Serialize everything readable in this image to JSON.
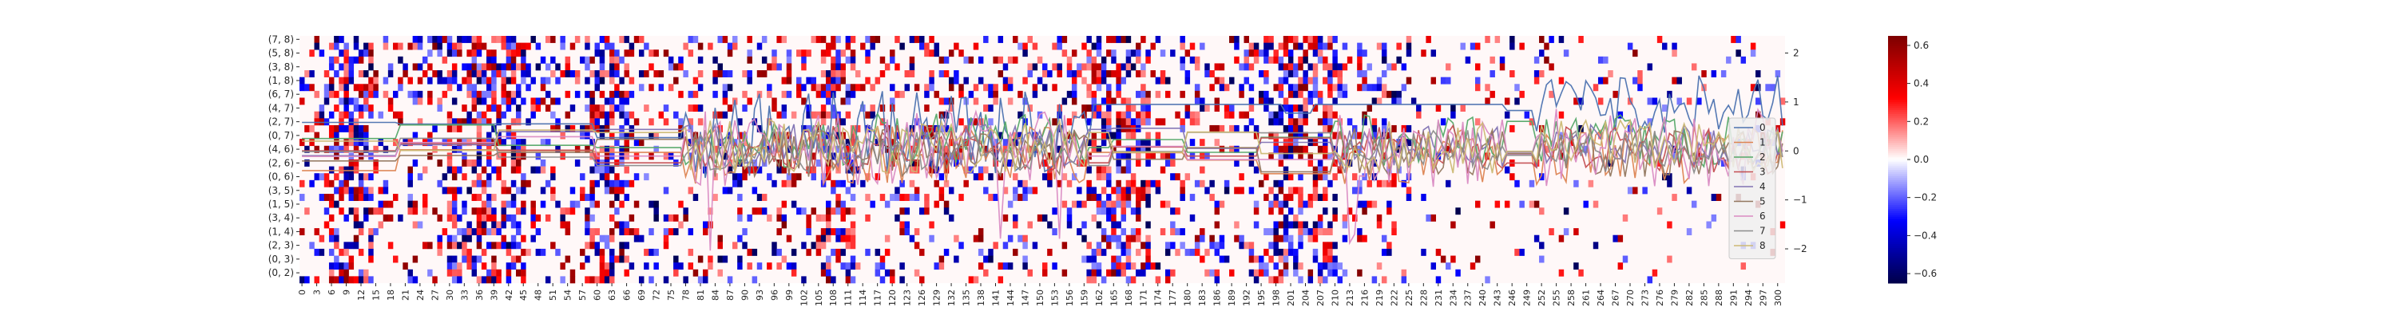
{
  "chart_data": {
    "type": "heatmap",
    "heatmap": {
      "y_tick_labels": [
        "(7, 8)",
        "(5, 8)",
        "(3, 8)",
        "(1, 8)",
        "(6, 7)",
        "(4, 7)",
        "(2, 7)",
        "(0, 7)",
        "(4, 6)",
        "(2, 6)",
        "(0, 6)",
        "(3, 5)",
        "(1, 5)",
        "(3, 4)",
        "(1, 4)",
        "(2, 3)",
        "(0, 3)",
        "(0, 2)"
      ],
      "x_tick_labels": [
        "0",
        "3",
        "6",
        "9",
        "12",
        "15",
        "18",
        "21",
        "24",
        "27",
        "30",
        "33",
        "36",
        "39",
        "42",
        "45",
        "48",
        "51",
        "54",
        "57",
        "60",
        "63",
        "66",
        "69",
        "72",
        "75",
        "78",
        "81",
        "84",
        "87",
        "90",
        "93",
        "96",
        "99",
        "102",
        "105",
        "108",
        "111",
        "114",
        "117",
        "120",
        "123",
        "126",
        "129",
        "132",
        "135",
        "138",
        "141",
        "144",
        "147",
        "150",
        "153",
        "156",
        "159",
        "162",
        "165",
        "168",
        "171",
        "174",
        "177",
        "180",
        "183",
        "186",
        "189",
        "192",
        "195",
        "198",
        "201",
        "204",
        "207",
        "210",
        "213",
        "216",
        "219",
        "222",
        "225",
        "228",
        "231",
        "234",
        "237",
        "240",
        "243",
        "246",
        "249",
        "252",
        "255",
        "258",
        "261",
        "264",
        "267",
        "270",
        "273",
        "276",
        "279",
        "282",
        "285",
        "288",
        "291",
        "294",
        "297",
        "300"
      ],
      "n_columns": 302,
      "n_rows": 36,
      "colormap": "seismic",
      "vmin": -0.65,
      "vmax": 0.65,
      "colorbar_ticks": [
        "0.6",
        "0.4",
        "0.2",
        "0.0",
        "−0.2",
        "−0.4",
        "−0.6"
      ]
    },
    "line_overlay": {
      "type": "line",
      "y_tick_labels": [
        "2",
        "1",
        "0",
        "−1",
        "−2"
      ],
      "ylim": [
        -2.7,
        2.35
      ],
      "series": [
        {
          "name": "0",
          "color": "#4c72b0"
        },
        {
          "name": "1",
          "color": "#dd8452"
        },
        {
          "name": "2",
          "color": "#55a868"
        },
        {
          "name": "3",
          "color": "#c44e52"
        },
        {
          "name": "4",
          "color": "#8172b3"
        },
        {
          "name": "5",
          "color": "#937860"
        },
        {
          "name": "6",
          "color": "#da8bc3"
        },
        {
          "name": "7",
          "color": "#8c8c8c"
        },
        {
          "name": "8",
          "color": "#ccb974"
        }
      ],
      "legend_position": "right"
    }
  }
}
